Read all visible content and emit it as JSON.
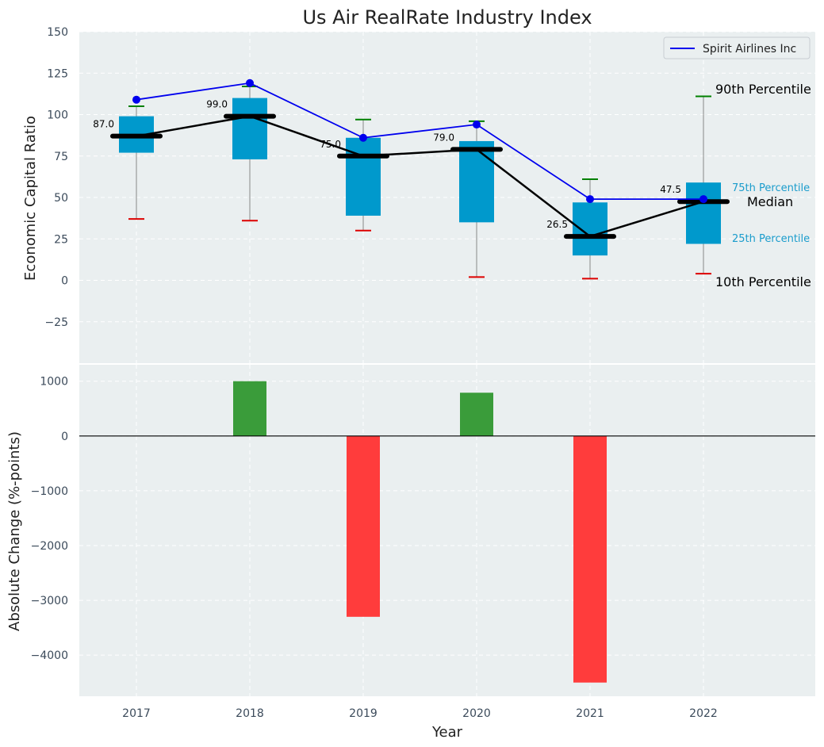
{
  "chart_data": [
    {
      "type": "box",
      "title": "Us Air RealRate Industry Index",
      "xlabel": "",
      "ylabel": "Economic Capital Ratio",
      "ylim": [
        -50,
        150
      ],
      "yticks": [
        -25,
        0,
        25,
        50,
        75,
        100,
        125,
        150
      ],
      "categories": [
        "2017",
        "2018",
        "2019",
        "2020",
        "2021",
        "2022"
      ],
      "grid": true,
      "legend": {
        "position": "top-right",
        "entries": [
          "Spirit Airlines Inc"
        ]
      },
      "boxes": [
        {
          "year": "2017",
          "p10": 37,
          "q1": 77,
          "median": 87.0,
          "q3": 99,
          "p90": 105
        },
        {
          "year": "2018",
          "p10": 36,
          "q1": 73,
          "median": 99.0,
          "q3": 110,
          "p90": 117
        },
        {
          "year": "2019",
          "p10": 30,
          "q1": 39,
          "median": 75.0,
          "q3": 86,
          "p90": 97
        },
        {
          "year": "2020",
          "p10": 2,
          "q1": 35,
          "median": 79.0,
          "q3": 84,
          "p90": 96
        },
        {
          "year": "2021",
          "p10": 1,
          "q1": 15,
          "median": 26.5,
          "q3": 47,
          "p90": 61
        },
        {
          "year": "2022",
          "p10": 4,
          "q1": 22,
          "median": 47.5,
          "q3": 59,
          "p90": 111
        }
      ],
      "median_labels": [
        "87.0",
        "99.0",
        "75.0",
        "79.0",
        "26.5",
        "47.5"
      ],
      "series": [
        {
          "name": "Spirit Airlines Inc",
          "color": "#0000ee",
          "values": [
            109,
            119,
            86,
            94,
            49,
            49
          ]
        }
      ],
      "annotations": {
        "p90": "90th Percentile",
        "p75": "75th Percentile",
        "median": "Median",
        "p25": "25th Percentile",
        "p10": "10th Percentile"
      },
      "colors": {
        "box": "#0099cc",
        "p90_cap": "#008000",
        "p10_cap": "#dd0000",
        "median_line": "#000000"
      }
    },
    {
      "type": "bar",
      "xlabel": "Year",
      "ylabel": "Absolute Change (%-points)",
      "ylim": [
        -4750,
        1300
      ],
      "yticks": [
        -4000,
        -3000,
        -2000,
        -1000,
        0,
        1000
      ],
      "categories": [
        "2017",
        "2018",
        "2019",
        "2020",
        "2021",
        "2022"
      ],
      "values": [
        0,
        1000,
        -3300,
        790,
        -4500,
        0
      ],
      "grid": true,
      "colors": {
        "positive": "#3a9c3a",
        "negative": "#ff3c3c"
      }
    }
  ]
}
